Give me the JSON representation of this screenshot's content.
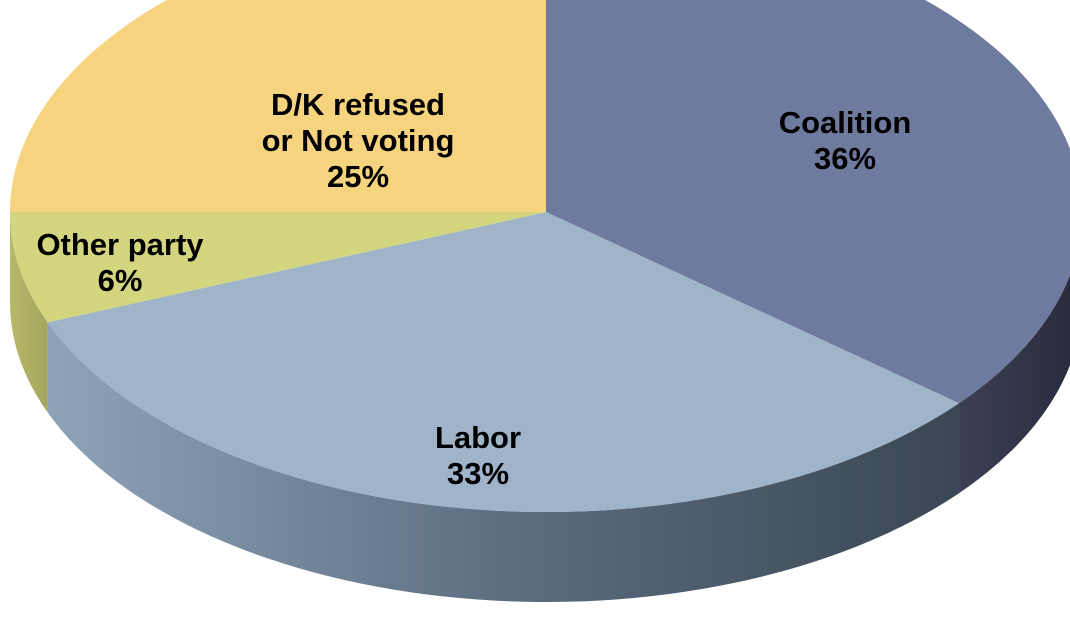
{
  "chart_data": {
    "type": "pie",
    "style": "3d",
    "title": "",
    "slices": [
      {
        "name": "Coalition",
        "value": 36,
        "label_lines": [
          "Coalition"
        ],
        "value_label": "36%",
        "color": "#6f7a9f"
      },
      {
        "name": "Labor",
        "value": 33,
        "label_lines": [
          "Labor"
        ],
        "value_label": "33%",
        "color": "#9fb3c9"
      },
      {
        "name": "Other party",
        "value": 6,
        "label_lines": [
          "Other party"
        ],
        "value_label": "6%",
        "color": "#d3d67e"
      },
      {
        "name": "D/K refused or Not voting",
        "value": 25,
        "label_lines": [
          "D/K refused",
          "or Not voting"
        ],
        "value_label": "25%",
        "color": "#f6d47f"
      }
    ]
  }
}
